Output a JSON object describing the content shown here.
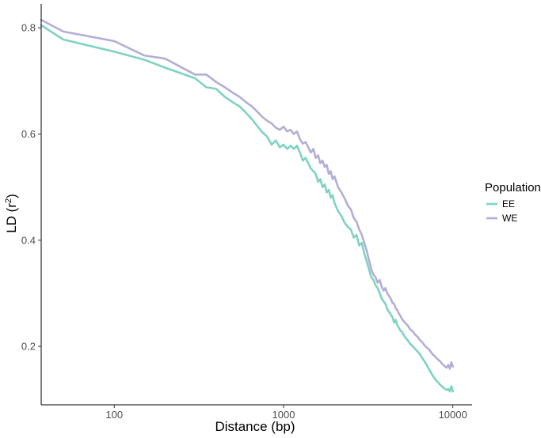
{
  "chart_data": {
    "type": "line",
    "xlabel": "Distance (bp)",
    "ylabel_main": "LD (r",
    "ylabel_sup": "2",
    "ylabel_close": ")",
    "x_scale": "log10",
    "xlim": [
      37,
      13000
    ],
    "ylim": [
      0.09,
      0.845
    ],
    "x_ticks": [
      100,
      1000,
      10000
    ],
    "x_tick_labels": [
      "100",
      "1000",
      "10000"
    ],
    "y_ticks": [
      0.2,
      0.4,
      0.6,
      0.8
    ],
    "y_tick_labels": [
      "0.2",
      "0.4",
      "0.6",
      "0.8"
    ],
    "grid": false,
    "legend": {
      "title": "Population",
      "position": "right",
      "entries": [
        {
          "label": "EE",
          "color": "#7fd3c2"
        },
        {
          "label": "WE",
          "color": "#b4aed6"
        }
      ]
    },
    "series": [
      {
        "name": "EE",
        "color": "#7fd3c2",
        "x": [
          37,
          50,
          100,
          150,
          200,
          300,
          350,
          400,
          450,
          500,
          550,
          600,
          650,
          700,
          750,
          800,
          850,
          900,
          950,
          1000,
          1050,
          1100,
          1150,
          1200,
          1250,
          1300,
          1350,
          1400,
          1450,
          1500,
          1550,
          1600,
          1650,
          1700,
          1750,
          1800,
          1850,
          1900,
          1950,
          2000,
          2100,
          2200,
          2300,
          2400,
          2500,
          2600,
          2700,
          2800,
          2900,
          3000,
          3100,
          3200,
          3300,
          3400,
          3500,
          3600,
          3700,
          3800,
          3900,
          4000,
          4100,
          4200,
          4300,
          4400,
          4500,
          4600,
          4700,
          4800,
          4900,
          5000,
          5200,
          5400,
          5600,
          5800,
          6000,
          6200,
          6400,
          6600,
          6800,
          7000,
          7200,
          7400,
          7600,
          7800,
          8000,
          8200,
          8400,
          8600,
          8800,
          9000,
          9200,
          9400,
          9600,
          9800,
          10000
        ],
        "y": [
          0.805,
          0.778,
          0.755,
          0.74,
          0.725,
          0.705,
          0.688,
          0.685,
          0.67,
          0.66,
          0.652,
          0.64,
          0.628,
          0.615,
          0.603,
          0.595,
          0.58,
          0.588,
          0.575,
          0.58,
          0.572,
          0.578,
          0.572,
          0.578,
          0.565,
          0.55,
          0.555,
          0.545,
          0.535,
          0.53,
          0.525,
          0.51,
          0.515,
          0.5,
          0.505,
          0.49,
          0.495,
          0.48,
          0.485,
          0.47,
          0.455,
          0.445,
          0.432,
          0.425,
          0.42,
          0.405,
          0.41,
          0.39,
          0.395,
          0.375,
          0.36,
          0.345,
          0.33,
          0.325,
          0.315,
          0.31,
          0.3,
          0.29,
          0.285,
          0.28,
          0.27,
          0.265,
          0.26,
          0.255,
          0.245,
          0.25,
          0.24,
          0.235,
          0.23,
          0.228,
          0.218,
          0.212,
          0.205,
          0.2,
          0.195,
          0.19,
          0.185,
          0.178,
          0.172,
          0.165,
          0.158,
          0.152,
          0.145,
          0.14,
          0.135,
          0.132,
          0.128,
          0.125,
          0.122,
          0.12,
          0.118,
          0.12,
          0.115,
          0.125,
          0.115
        ]
      },
      {
        "name": "WE",
        "color": "#b4aed6",
        "x": [
          37,
          50,
          100,
          150,
          200,
          300,
          350,
          400,
          450,
          500,
          550,
          600,
          650,
          700,
          750,
          800,
          850,
          900,
          950,
          1000,
          1050,
          1100,
          1150,
          1200,
          1250,
          1300,
          1350,
          1400,
          1450,
          1500,
          1550,
          1600,
          1650,
          1700,
          1750,
          1800,
          1850,
          1900,
          1950,
          2000,
          2100,
          2200,
          2300,
          2400,
          2500,
          2600,
          2700,
          2800,
          2900,
          3000,
          3100,
          3200,
          3300,
          3400,
          3500,
          3600,
          3700,
          3800,
          3900,
          4000,
          4100,
          4200,
          4300,
          4400,
          4500,
          4600,
          4700,
          4800,
          4900,
          5000,
          5200,
          5400,
          5600,
          5800,
          6000,
          6200,
          6400,
          6600,
          6800,
          7000,
          7200,
          7400,
          7600,
          7800,
          8000,
          8200,
          8400,
          8600,
          8800,
          9000,
          9200,
          9400,
          9600,
          9800,
          10000
        ],
        "y": [
          0.815,
          0.793,
          0.775,
          0.748,
          0.742,
          0.712,
          0.712,
          0.698,
          0.688,
          0.678,
          0.67,
          0.66,
          0.652,
          0.642,
          0.632,
          0.625,
          0.62,
          0.612,
          0.608,
          0.614,
          0.605,
          0.608,
          0.6,
          0.605,
          0.59,
          0.582,
          0.585,
          0.575,
          0.565,
          0.572,
          0.555,
          0.56,
          0.545,
          0.55,
          0.538,
          0.542,
          0.525,
          0.53,
          0.515,
          0.52,
          0.5,
          0.49,
          0.478,
          0.465,
          0.458,
          0.442,
          0.435,
          0.42,
          0.41,
          0.395,
          0.38,
          0.362,
          0.345,
          0.335,
          0.33,
          0.32,
          0.325,
          0.312,
          0.305,
          0.31,
          0.3,
          0.295,
          0.29,
          0.282,
          0.28,
          0.272,
          0.268,
          0.262,
          0.258,
          0.252,
          0.245,
          0.24,
          0.232,
          0.228,
          0.222,
          0.218,
          0.212,
          0.208,
          0.202,
          0.198,
          0.195,
          0.19,
          0.185,
          0.182,
          0.178,
          0.175,
          0.172,
          0.168,
          0.165,
          0.162,
          0.16,
          0.165,
          0.158,
          0.17,
          0.162
        ]
      }
    ]
  }
}
